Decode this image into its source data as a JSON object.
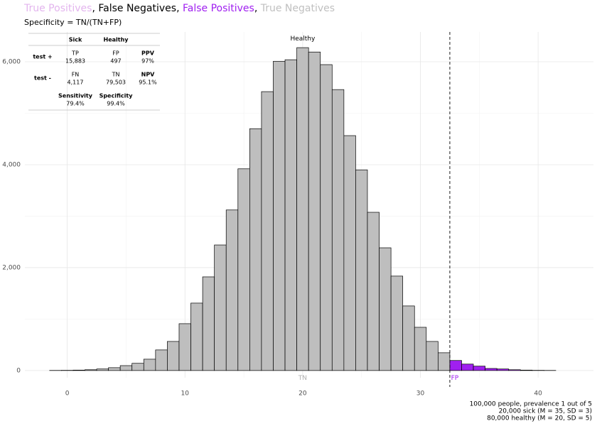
{
  "chart_data": {
    "type": "histogram",
    "title": [
      {
        "text": "True Positives",
        "color": "#e3b5ee"
      },
      {
        "text": ", ",
        "color": "#000000"
      },
      {
        "text": "False Negatives",
        "color": "#000000"
      },
      {
        "text": ", ",
        "color": "#000000"
      },
      {
        "text": "False Positives",
        "color": "#a020f0"
      },
      {
        "text": ", ",
        "color": "#000000"
      },
      {
        "text": "True Negatives",
        "color": "#c0c0c0"
      }
    ],
    "subtitle": "Specificity = TN/(TN+FP)",
    "bins": [
      -1.5,
      -0.5,
      0.5,
      1.5,
      2.5,
      3.5,
      4.5,
      5.5,
      6.5,
      7.5,
      8.5,
      9.5,
      10.5,
      11.5,
      12.5,
      13.5,
      14.5,
      15.5,
      16.5,
      17.5,
      18.5,
      19.5,
      20.5,
      21.5,
      22.5,
      23.5,
      24.5,
      25.5,
      26.5,
      27.5,
      28.5,
      29.5,
      30.5,
      31.5,
      32.5,
      33.5,
      34.5,
      35.5,
      36.5,
      37.5,
      38.5,
      39.5,
      40.5,
      41.5
    ],
    "values": [
      2,
      4,
      8,
      15,
      30,
      55,
      95,
      140,
      220,
      400,
      565,
      910,
      1310,
      1820,
      2440,
      3120,
      3920,
      4700,
      5420,
      6010,
      6040,
      6275,
      6190,
      5945,
      5460,
      4565,
      3900,
      3075,
      2385,
      1835,
      1255,
      840,
      565,
      345,
      195,
      125,
      85,
      40,
      30,
      15,
      8,
      4,
      2
    ],
    "fill": "#bebebe",
    "threshold": 32.5,
    "threshold_fill": "#a020f0",
    "xlim": [
      -3.6,
      44.7
    ],
    "ylim": [
      -140,
      6580
    ],
    "xticks": [
      0,
      10,
      20,
      30,
      40
    ],
    "yticks": [
      0,
      {
        "value": 2000,
        "label": "2,000"
      },
      {
        "value": 4000,
        "label": "4,000"
      },
      {
        "value": 6000,
        "label": "6,000"
      }
    ],
    "xminor": [
      5,
      15,
      25,
      35
    ],
    "yminor": [
      1000,
      3000,
      5000
    ],
    "grid": true,
    "annotations": [
      {
        "text": "Healthy",
        "x": 20,
        "y": 6450,
        "color": "#000000",
        "anchor": "middle"
      },
      {
        "text": "TN",
        "x": 20,
        "y": -150,
        "color": "#b0b0b0",
        "anchor": "middle"
      },
      {
        "text": "FP",
        "x": 32.6,
        "y": -150,
        "color": "#a020f0",
        "anchor": "start"
      }
    ],
    "caption": [
      "100,000 people, prevalence 1 out of 5",
      "20,000 sick (M = 35, SD = 3)",
      "80,000 healthy (M = 20, SD = 5)"
    ]
  },
  "table": {
    "columns": [
      "Sick",
      "Healthy"
    ],
    "rows": [
      {
        "label": "test +",
        "cells": [
          {
            "name": "TP",
            "value": "15,883",
            "color": "#e3b5ee"
          },
          {
            "name": "FP",
            "value": "497",
            "color": "#a020f0"
          }
        ],
        "metric": {
          "name": "PPV",
          "value": "97%"
        }
      },
      {
        "label": "test -",
        "cells": [
          {
            "name": "FN",
            "value": "4,117",
            "color": "#000000"
          },
          {
            "name": "TN",
            "value": "79,503",
            "color": "#b0b0b0"
          }
        ],
        "metric": {
          "name": "NPV",
          "value": "95.1%"
        }
      }
    ],
    "footer": [
      {
        "name": "Sensitivity",
        "value": "79.4%"
      },
      {
        "name": "Specificity",
        "value": "99.4%"
      }
    ]
  }
}
